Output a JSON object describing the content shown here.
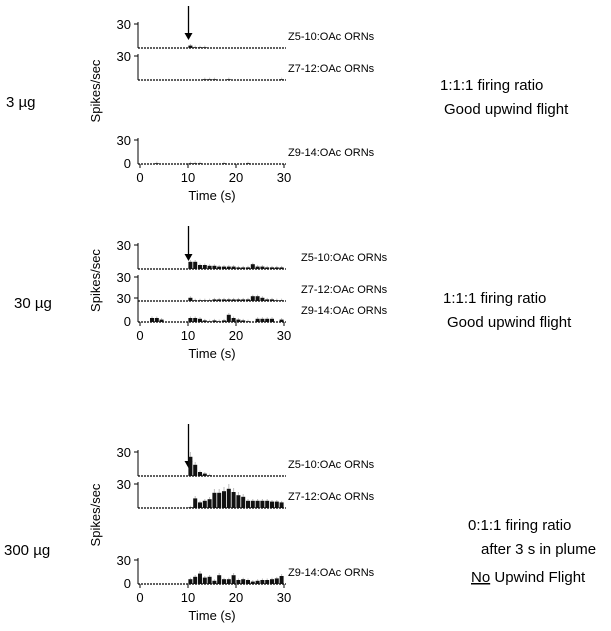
{
  "chart_data": {
    "type": "bar",
    "title": "",
    "common": {
      "x_label": "Time (s)",
      "y_label": "Spikes/sec",
      "x_range": [
        0,
        30
      ],
      "x_ticks": [
        0,
        10,
        20,
        30
      ],
      "y_range": [
        0,
        30
      ],
      "y_ticks_top": "30",
      "y_tick_bottom": "0",
      "bin_width_s": 1,
      "stimulus_onset_s": 10
    },
    "groups": [
      {
        "dose": "3 µg",
        "note_line1": "1:1:1 firing ratio",
        "note_line2": "Good upwind flight",
        "note_line3": "",
        "note_line3_under": "",
        "series": [
          {
            "name": "Z5-10:OAc ORNs",
            "values": [
              0,
              0,
              0,
              0,
              0,
              0,
              0,
              0,
              0,
              0,
              3,
              1,
              1,
              1,
              0,
              0,
              0,
              0,
              0,
              0,
              0,
              0,
              0,
              0,
              0,
              0,
              0,
              0,
              0,
              0
            ]
          },
          {
            "name": "Z7-12:OAc ORNs",
            "values": [
              0,
              0,
              0,
              0,
              0,
              0,
              0,
              0,
              0,
              0,
              0,
              0,
              0,
              1,
              1,
              1,
              0,
              0,
              1,
              0,
              0,
              0,
              0,
              0,
              0,
              0,
              0,
              0,
              0,
              1
            ]
          },
          {
            "name": "Z9-14:OAc ORNs",
            "values": [
              0,
              0,
              0,
              1,
              0,
              0,
              0,
              0,
              0,
              0,
              1,
              1,
              1,
              0,
              0,
              0,
              0,
              1,
              0,
              0,
              0,
              0,
              1,
              0,
              0,
              0,
              0,
              0,
              0,
              0
            ]
          }
        ]
      },
      {
        "dose": "30 µg",
        "note_line1": "1:1:1 firing ratio",
        "note_line2": "Good upwind flight",
        "note_line3": "",
        "note_line3_under": "",
        "series": [
          {
            "name": "Z5-10:OAc ORNs",
            "values": [
              0,
              0,
              0,
              0,
              0,
              0,
              0,
              0,
              0,
              0,
              9,
              9,
              5,
              5,
              4,
              4,
              3,
              3,
              3,
              3,
              2,
              2,
              2,
              6,
              3,
              3,
              2,
              2,
              2,
              2
            ]
          },
          {
            "name": "Z7-12:OAc ORNs",
            "values": [
              0,
              0,
              0,
              0,
              0,
              0,
              0,
              0,
              0,
              0,
              4,
              1,
              1,
              1,
              1,
              2,
              2,
              2,
              2,
              2,
              2,
              2,
              2,
              6,
              6,
              4,
              2,
              2,
              1,
              1
            ]
          },
          {
            "name": "Z9-14:OAc ORNs",
            "values": [
              0,
              0,
              5,
              5,
              3,
              0,
              0,
              0,
              0,
              0,
              5,
              5,
              4,
              2,
              1,
              2,
              1,
              2,
              9,
              5,
              3,
              2,
              1,
              0,
              4,
              4,
              4,
              4,
              0,
              3
            ]
          }
        ]
      },
      {
        "dose": "300 µg",
        "note_line1": "0:1:1 firing ratio",
        "note_line2": "after 3 s in plume",
        "note_line3": "Upwind Flight",
        "note_line3_under": "No",
        "series": [
          {
            "name": "Z5-10:OAc ORNs",
            "values": [
              0,
              0,
              0,
              0,
              0,
              0,
              0,
              0,
              0,
              0,
              24,
              14,
              5,
              3,
              1,
              0,
              0,
              0,
              0,
              0,
              0,
              0,
              0,
              0,
              0,
              0,
              0,
              0,
              0,
              0
            ]
          },
          {
            "name": "Z7-12:OAc ORNs",
            "values": [
              0,
              0,
              0,
              0,
              0,
              0,
              0,
              0,
              0,
              0,
              1,
              12,
              7,
              9,
              11,
              19,
              19,
              21,
              24,
              20,
              16,
              14,
              9,
              9,
              9,
              9,
              9,
              8,
              8,
              7
            ]
          },
          {
            "name": "Z9-14:OAc ORNs",
            "values": [
              0,
              0,
              0,
              0,
              0,
              0,
              0,
              0,
              0,
              0,
              6,
              9,
              13,
              8,
              9,
              4,
              11,
              6,
              6,
              11,
              5,
              6,
              5,
              3,
              4,
              5,
              5,
              6,
              7,
              10
            ]
          }
        ]
      }
    ]
  }
}
